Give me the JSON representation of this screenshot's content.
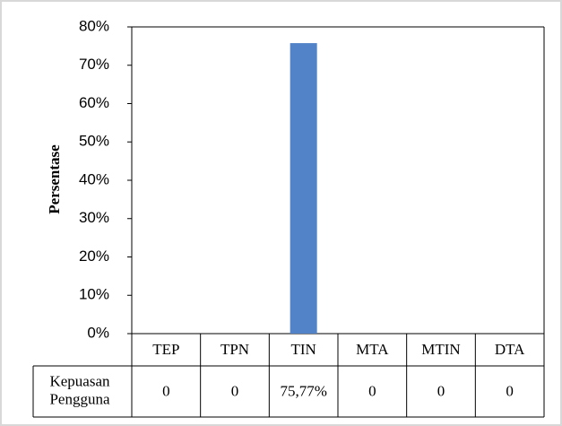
{
  "chart_data": {
    "type": "bar",
    "y_label": "Persentase",
    "categories": [
      "TEP",
      "TPN",
      "TIN",
      "MTA",
      "MTIN",
      "DTA"
    ],
    "series": [
      {
        "name": "Kepuasan Pengguna",
        "color": "#5282c8",
        "values": [
          0,
          0,
          75.77,
          0,
          0,
          0
        ],
        "value_labels": [
          "0",
          "0",
          "75,77%",
          "0",
          "0",
          "0"
        ]
      }
    ],
    "ylim": [
      0,
      80
    ],
    "yticks": [
      {
        "value": 0,
        "label": "0%"
      },
      {
        "value": 10,
        "label": "10%"
      },
      {
        "value": 20,
        "label": "20%"
      },
      {
        "value": 30,
        "label": "30%"
      },
      {
        "value": 40,
        "label": "40%"
      },
      {
        "value": 50,
        "label": "50%"
      },
      {
        "value": 60,
        "label": "60%"
      },
      {
        "value": 70,
        "label": "70%"
      },
      {
        "value": 80,
        "label": "80%"
      }
    ],
    "grid": false
  }
}
